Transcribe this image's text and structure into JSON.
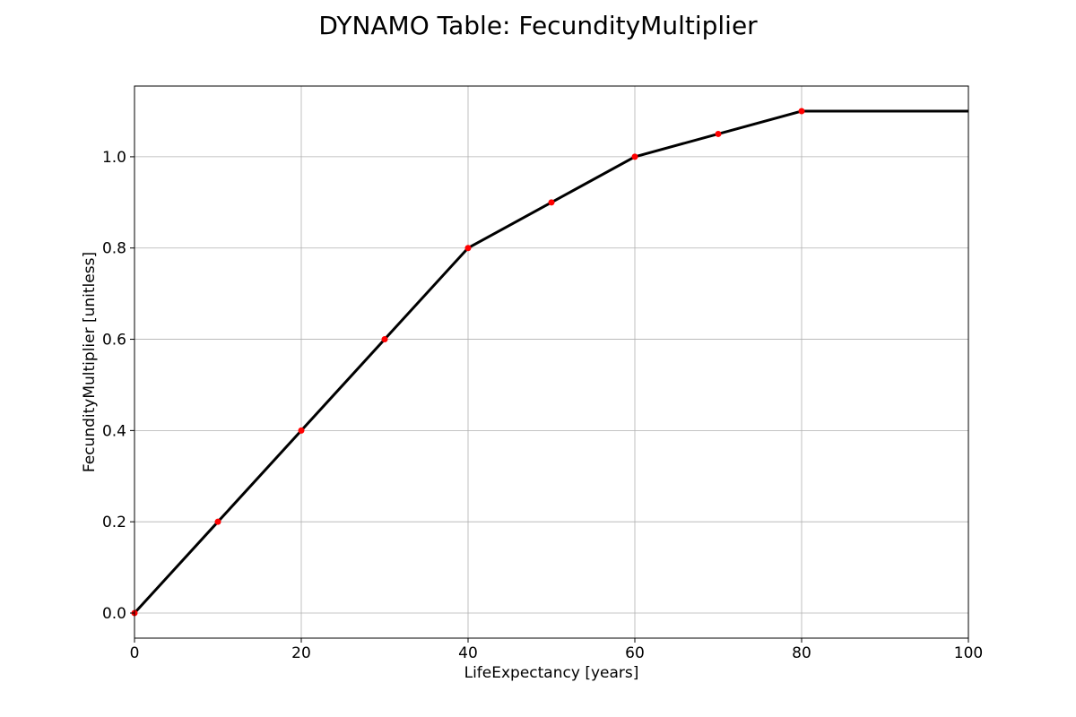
{
  "chart_data": {
    "type": "line",
    "title": "DYNAMO Table: FecundityMultiplier",
    "xlabel": "LifeExpectancy [years]",
    "ylabel": "FecundityMultiplier [unitless]",
    "xlim": [
      0,
      100
    ],
    "ylim": [
      -0.055,
      1.155
    ],
    "xticks": [
      0,
      20,
      40,
      60,
      80,
      100
    ],
    "yticks": [
      0.0,
      0.2,
      0.4,
      0.6,
      0.8,
      1.0
    ],
    "ytick_labels": [
      "0.0",
      "0.2",
      "0.4",
      "0.6",
      "0.8",
      "1.0"
    ],
    "grid": true,
    "series": [
      {
        "x": [
          0,
          10,
          20,
          30,
          40,
          50,
          60,
          70,
          80,
          100
        ],
        "y": [
          0.0,
          0.2,
          0.4,
          0.6,
          0.8,
          0.9,
          1.0,
          1.05,
          1.1,
          1.1
        ],
        "line_color": "#000000",
        "markers": {
          "x": [
            0,
            10,
            20,
            30,
            40,
            50,
            60,
            70,
            80
          ],
          "y": [
            0.0,
            0.2,
            0.4,
            0.6,
            0.8,
            0.9,
            1.0,
            1.05,
            1.1
          ],
          "color": "#ff0000"
        }
      }
    ]
  }
}
